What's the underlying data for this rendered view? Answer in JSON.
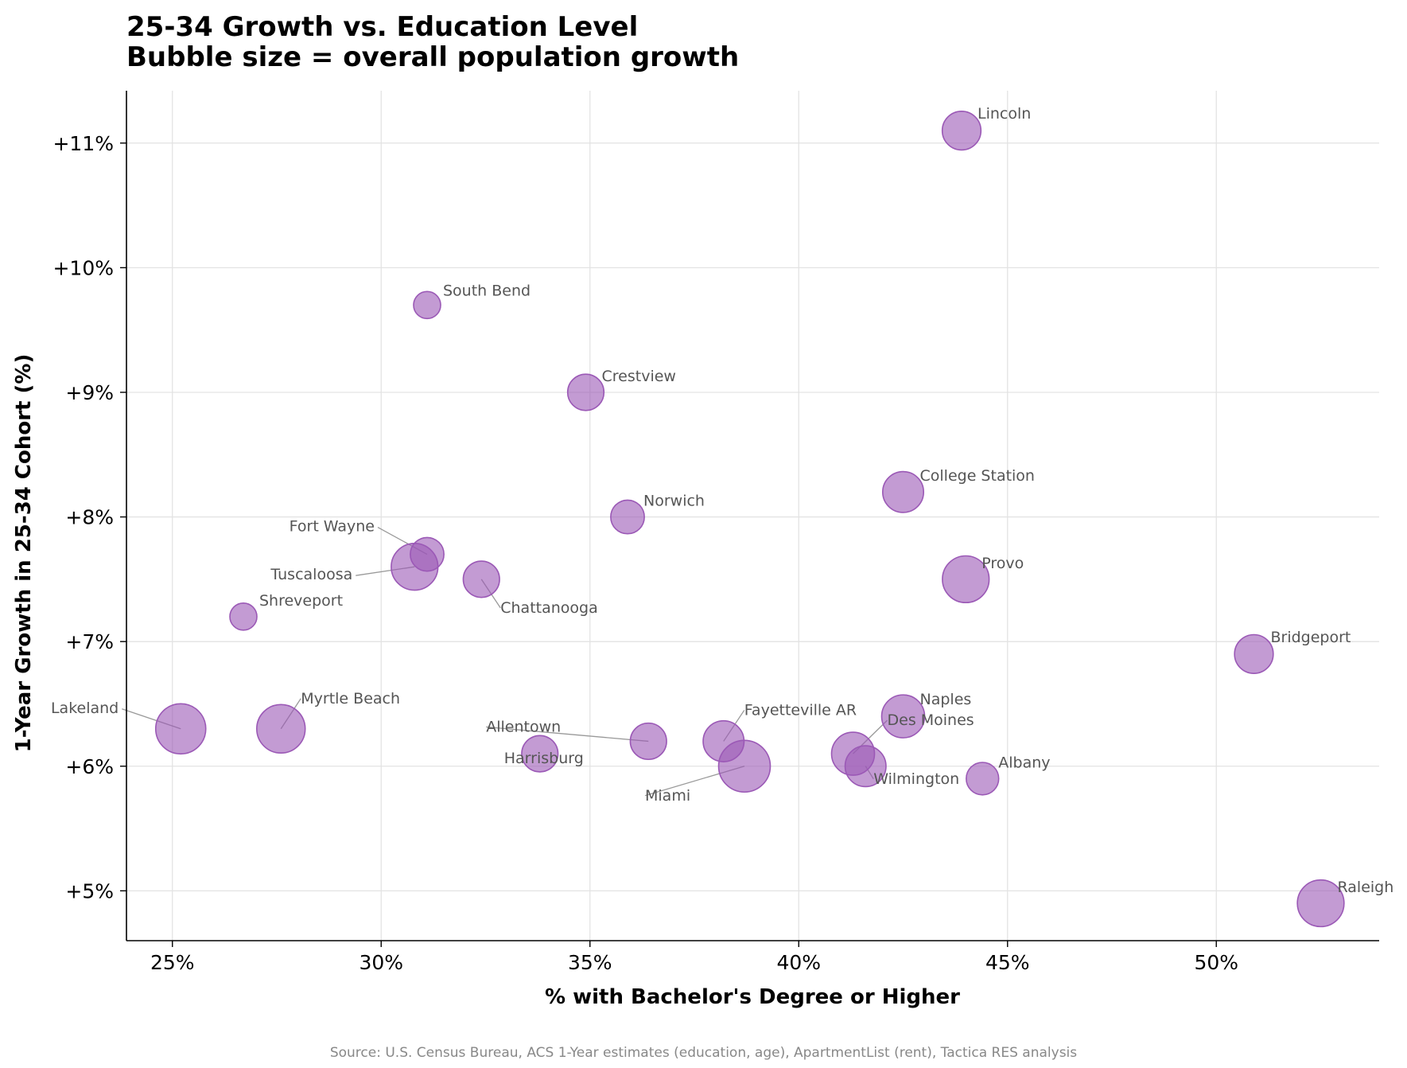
{
  "chart_data": {
    "type": "scatter",
    "title": "25-34 Growth vs. Education Level",
    "subtitle": "Bubble size = overall population growth",
    "xlabel": "% with Bachelor's Degree or Higher",
    "ylabel": "1-Year Growth in 25-34 Cohort (%)",
    "xlim": [
      23.9,
      53.9
    ],
    "ylim": [
      4.6,
      11.42
    ],
    "x_ticks": [
      25,
      30,
      35,
      40,
      45,
      50
    ],
    "x_tick_labels": [
      "25%",
      "30%",
      "35%",
      "40%",
      "45%",
      "50%"
    ],
    "y_ticks": [
      5,
      6,
      7,
      8,
      9,
      10,
      11
    ],
    "y_tick_labels": [
      "+5%",
      "+6%",
      "+7%",
      "+8%",
      "+9%",
      "+10%",
      "+11%"
    ],
    "grid": true,
    "bubble_color": "#9b59b6",
    "source": "Source: U.S. Census Bureau, ACS 1-Year estimates (education, age), ApartmentList (rent), Tactica RES analysis",
    "points": [
      {
        "label": "Lincoln",
        "x": 43.9,
        "y": 11.1,
        "size": 3
      },
      {
        "label": "South Bend",
        "x": 31.1,
        "y": 9.7,
        "size": 1
      },
      {
        "label": "Crestview",
        "x": 34.9,
        "y": 9.0,
        "size": 2.5
      },
      {
        "label": "College Station",
        "x": 42.5,
        "y": 8.2,
        "size": 3.5
      },
      {
        "label": "Norwich",
        "x": 35.9,
        "y": 8.0,
        "size": 2
      },
      {
        "label": "Fort Wayne",
        "x": 31.1,
        "y": 7.7,
        "size": 2
      },
      {
        "label": "Tuscaloosa",
        "x": 30.8,
        "y": 7.6,
        "size": 5
      },
      {
        "label": "Chattanooga",
        "x": 32.4,
        "y": 7.5,
        "size": 2.5
      },
      {
        "label": "Provo",
        "x": 44.0,
        "y": 7.5,
        "size": 5
      },
      {
        "label": "Shreveport",
        "x": 26.7,
        "y": 7.2,
        "size": 1
      },
      {
        "label": "Bridgeport",
        "x": 50.9,
        "y": 6.9,
        "size": 3
      },
      {
        "label": "Naples",
        "x": 42.5,
        "y": 6.4,
        "size": 4
      },
      {
        "label": "Lakeland",
        "x": 25.2,
        "y": 6.3,
        "size": 6
      },
      {
        "label": "Myrtle Beach",
        "x": 27.6,
        "y": 6.3,
        "size": 5.5
      },
      {
        "label": "Fayetteville AR",
        "x": 38.2,
        "y": 6.2,
        "size": 3.5
      },
      {
        "label": "Allentown",
        "x": 36.4,
        "y": 6.2,
        "size": 2.5
      },
      {
        "label": "Harrisburg",
        "x": 33.8,
        "y": 6.1,
        "size": 2.5
      },
      {
        "label": "Des Moines",
        "x": 41.3,
        "y": 6.1,
        "size": 4
      },
      {
        "label": "Miami",
        "x": 38.7,
        "y": 6.0,
        "size": 6.5
      },
      {
        "label": "Wilmington",
        "x": 41.6,
        "y": 6.0,
        "size": 3.5
      },
      {
        "label": "Albany",
        "x": 44.4,
        "y": 5.9,
        "size": 1.8
      },
      {
        "label": "Raleigh",
        "x": 52.5,
        "y": 4.9,
        "size": 5
      }
    ]
  }
}
